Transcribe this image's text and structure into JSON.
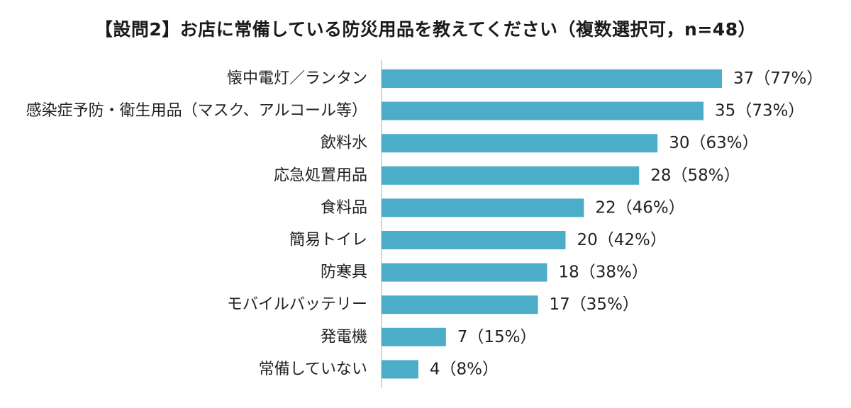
{
  "chart_data": {
    "type": "bar",
    "orientation": "horizontal",
    "title": "【設問2】お店に常備している防災用品を教えてください（複数選択可，n=48）",
    "categories": [
      "懐中電灯／ランタン",
      "感染症予防・衛生用品（マスク、アルコール等）",
      "飲料水",
      "応急処置用品",
      "食料品",
      "簡易トイレ",
      "防寒具",
      "モバイルバッテリー",
      "発電機",
      "常備していない"
    ],
    "values": [
      37,
      35,
      30,
      28,
      22,
      20,
      18,
      17,
      7,
      4
    ],
    "data_labels": [
      "37（77%）",
      "35（73%）",
      "30（63%）",
      "28（58%）",
      "22（46%）",
      "20（42%）",
      "18（38%）",
      "17（35%）",
      "7（15%）",
      "4（8%）"
    ],
    "xlim": [
      0,
      48
    ],
    "bar_color": "#4BADC8",
    "axis_color": "#c8c8c8",
    "grid": false,
    "legend": "none"
  }
}
